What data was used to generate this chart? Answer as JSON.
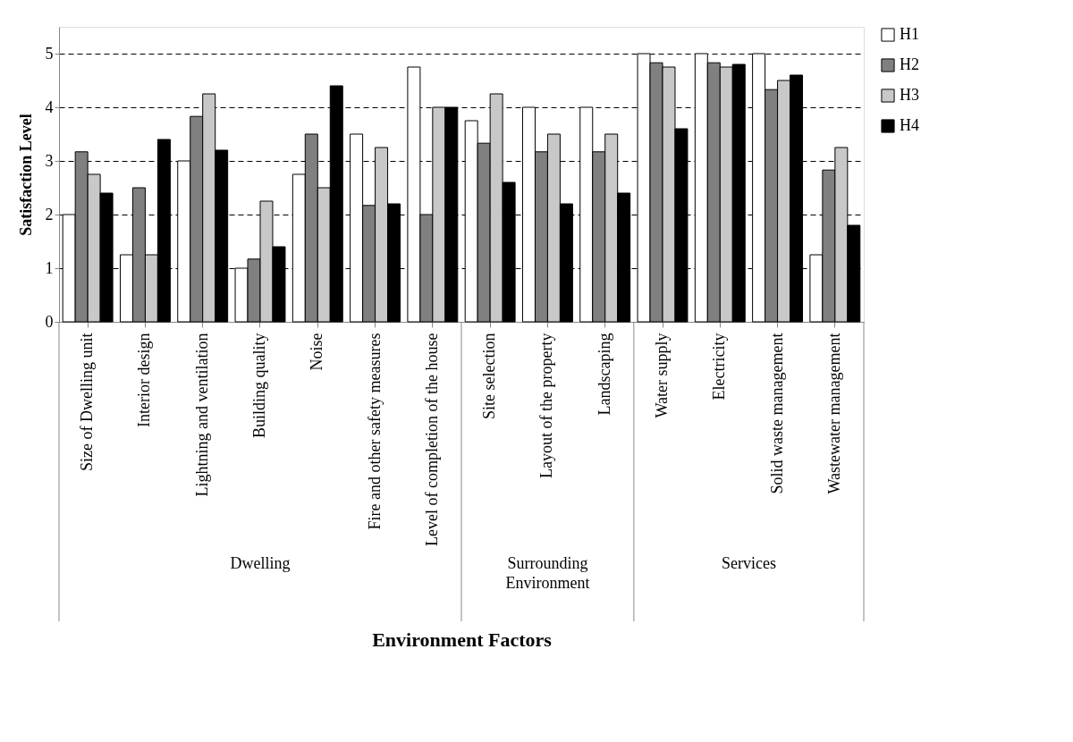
{
  "chart_data": {
    "type": "bar",
    "xlabel": "Environment Factors",
    "ylabel": "Satisfaction Level",
    "categories": [
      "Size of Dwelling unit",
      "Interior design",
      "Lightning and ventilation",
      "Building quality",
      "Noise",
      "Fire and other safety measures",
      "Level of completion of the house",
      "Site selection",
      "Layout of the property",
      "Landscaping",
      "Water supply",
      "Electricity",
      "Solid waste management",
      "Wastewater management"
    ],
    "series": [
      {
        "name": "H1",
        "color": "#ffffff",
        "values": [
          2,
          1.25,
          3,
          1,
          2.75,
          3.5,
          4.75,
          3.75,
          4,
          4,
          5,
          5,
          5,
          1.25
        ]
      },
      {
        "name": "H2",
        "color": "#808080",
        "values": [
          3.17,
          2.5,
          3.83,
          1.17,
          3.5,
          2.17,
          2,
          3.33,
          3.17,
          3.17,
          4.83,
          4.83,
          4.33,
          2.83
        ]
      },
      {
        "name": "H3",
        "color": "#c8c8c8",
        "values": [
          2.75,
          1.25,
          4.25,
          2.25,
          2.5,
          3.25,
          4,
          4.25,
          3.5,
          3.5,
          4.75,
          4.75,
          4.5,
          3.25
        ]
      },
      {
        "name": "H4",
        "color": "#000000",
        "values": [
          2.4,
          3.4,
          3.2,
          1.4,
          4.4,
          2.2,
          4,
          2.6,
          2.2,
          2.4,
          3.6,
          4.8,
          4.6,
          1.8
        ]
      }
    ],
    "annotations": [
      "Dwelling",
      "Surrounding Environment",
      "Services"
    ],
    "ylim": [
      0,
      5.5
    ],
    "yticks": [
      0,
      1,
      2,
      3,
      4,
      5
    ],
    "grid": "y",
    "legend": "right"
  }
}
